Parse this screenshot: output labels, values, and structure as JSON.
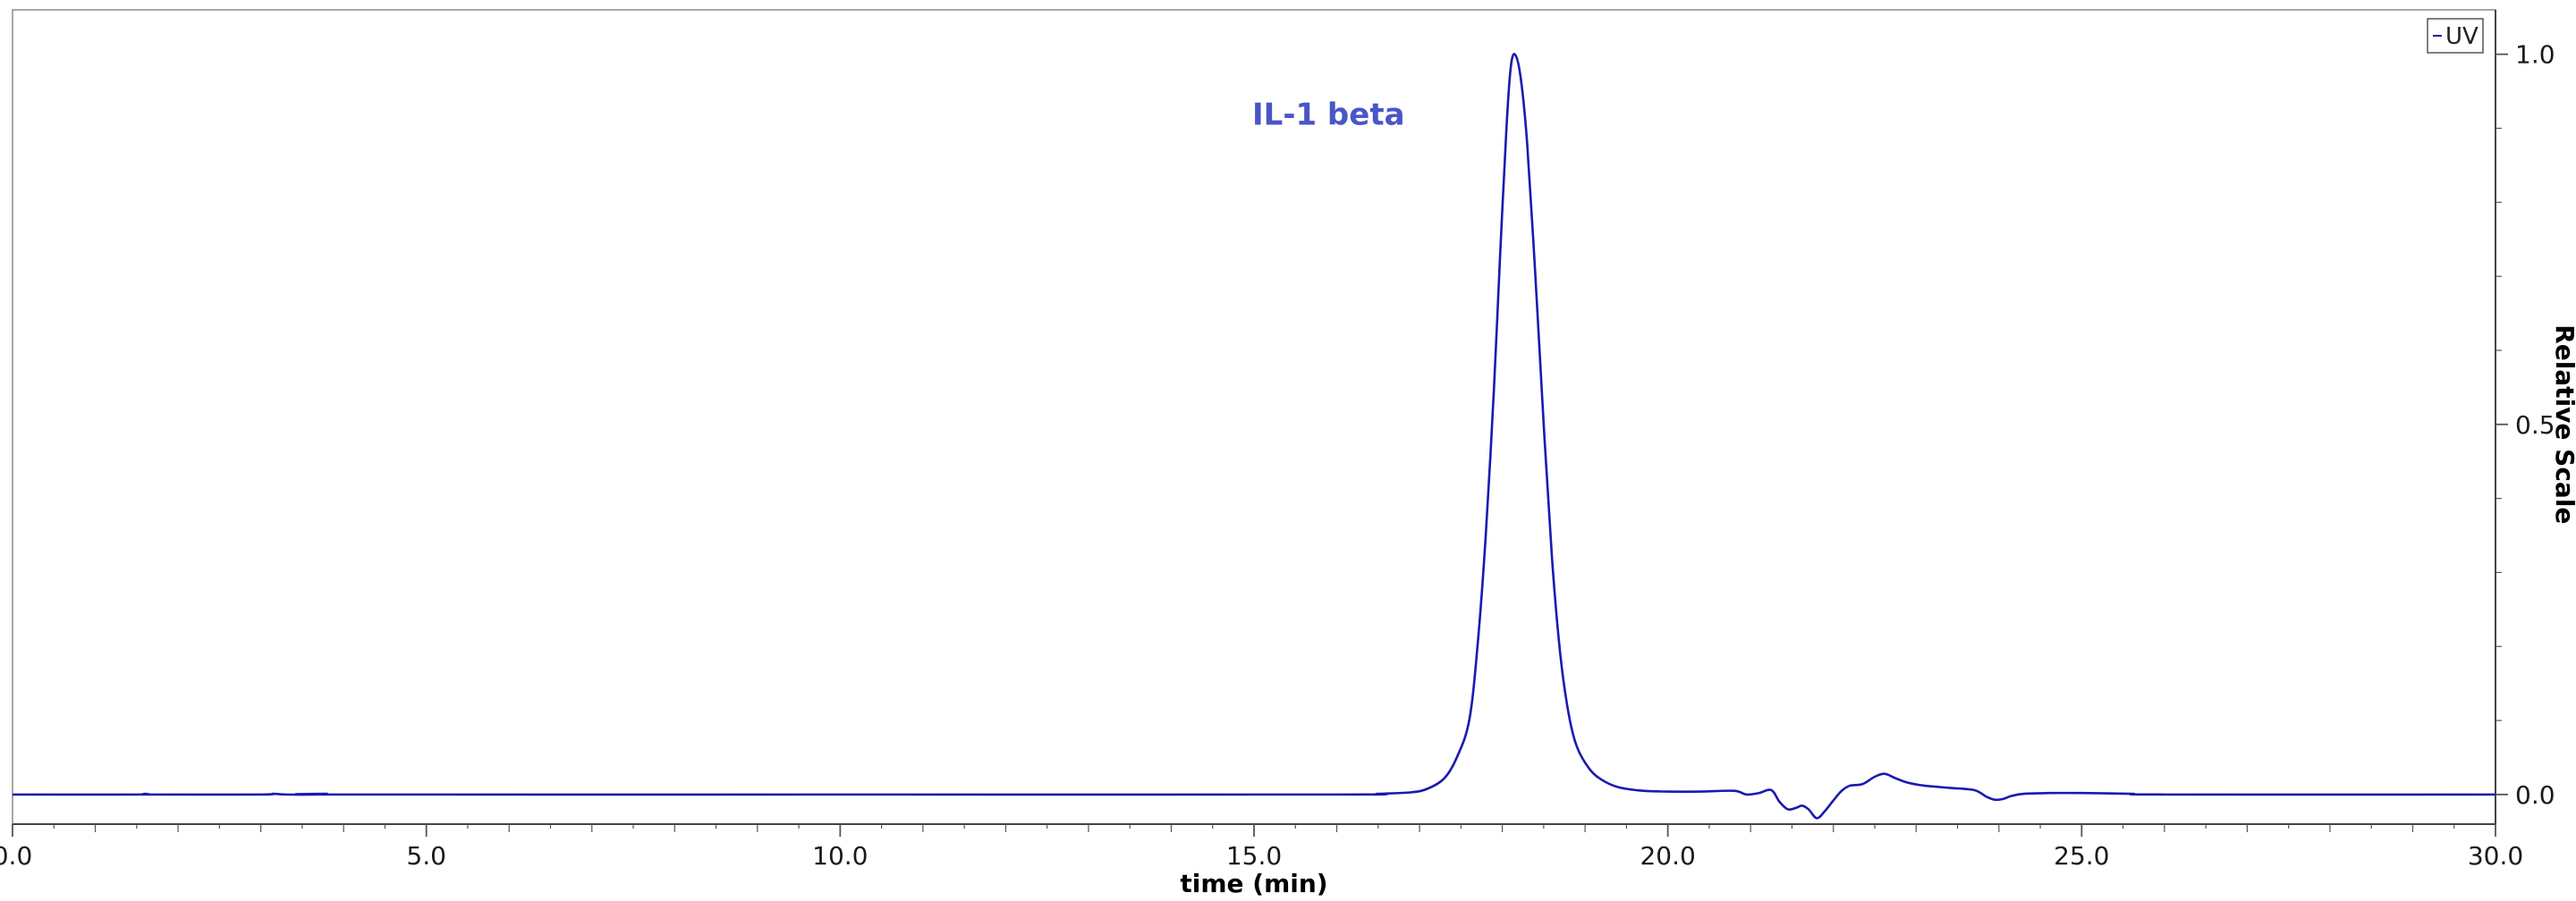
{
  "chart_data": {
    "type": "line",
    "xlabel": "time (min)",
    "ylabel": "Relative Scale",
    "xlim": [
      0,
      30
    ],
    "ylim": [
      -0.04,
      1.06
    ],
    "x_ticks": [
      0,
      5,
      10,
      15,
      20,
      25,
      30
    ],
    "x_tick_labels": [
      "0.0",
      "5.0",
      "10.0",
      "15.0",
      "20.0",
      "25.0",
      "30.0"
    ],
    "y_ticks": [
      0,
      0.5,
      1
    ],
    "y_tick_labels": [
      "0.0",
      "0.5",
      "1.0"
    ],
    "y_axis_side": "right",
    "grid": false,
    "legend": {
      "position": "top-right",
      "entries": [
        "UV"
      ]
    },
    "annotations": [
      {
        "text": "IL-1 beta",
        "x": 15.9,
        "y": 0.905
      }
    ],
    "series": [
      {
        "name": "UV",
        "color": "#1a1ab0",
        "x": [
          0.0,
          1.5,
          1.6,
          1.7,
          3.0,
          3.15,
          3.3,
          3.7,
          3.8,
          3.9,
          10.0,
          16.0,
          16.5,
          16.9,
          17.1,
          17.3,
          17.45,
          17.6,
          17.7,
          17.8,
          17.9,
          17.97,
          18.05,
          18.1,
          18.15,
          18.22,
          18.3,
          18.4,
          18.5,
          18.6,
          18.7,
          18.8,
          18.9,
          19.05,
          19.2,
          19.4,
          19.7,
          20.0,
          20.4,
          20.8,
          20.95,
          21.1,
          21.25,
          21.35,
          21.45,
          21.55,
          21.62,
          21.7,
          21.8,
          21.9,
          22.0,
          22.1,
          22.2,
          22.35,
          22.5,
          22.62,
          22.75,
          22.9,
          23.1,
          23.4,
          23.7,
          23.85,
          23.95,
          24.05,
          24.15,
          24.3,
          24.6,
          25.0,
          25.6,
          26.0,
          30.0
        ],
        "y": [
          0.0,
          0.0,
          0.001,
          0.0,
          0.0,
          0.001,
          0.0,
          0.0,
          0.001,
          0.0,
          0.0,
          0.0,
          0.001,
          0.003,
          0.008,
          0.022,
          0.05,
          0.1,
          0.2,
          0.35,
          0.55,
          0.72,
          0.9,
          0.98,
          1.0,
          0.97,
          0.88,
          0.7,
          0.5,
          0.32,
          0.19,
          0.11,
          0.065,
          0.035,
          0.02,
          0.01,
          0.005,
          0.004,
          0.004,
          0.005,
          0.0,
          0.002,
          0.006,
          -0.01,
          -0.02,
          -0.018,
          -0.015,
          -0.02,
          -0.032,
          -0.022,
          -0.008,
          0.005,
          0.012,
          0.014,
          0.024,
          0.028,
          0.022,
          0.016,
          0.012,
          0.009,
          0.006,
          -0.003,
          -0.007,
          -0.006,
          -0.002,
          0.001,
          0.002,
          0.002,
          0.001,
          0.0,
          0.0
        ]
      }
    ]
  }
}
